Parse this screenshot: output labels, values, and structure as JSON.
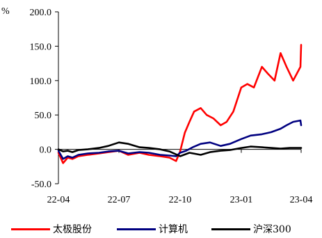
{
  "chart_data": {
    "type": "line",
    "title": "",
    "xlabel": "",
    "ylabel": "%",
    "ylim": [
      -50,
      200
    ],
    "y_ticks": [
      "200.0",
      "150.0",
      "100.0",
      "50.0",
      "0.0",
      "-50.0"
    ],
    "x_ticks": [
      "22-04",
      "22-07",
      "22-10",
      "23-01",
      "23-04"
    ],
    "x_range": [
      "2022-04",
      "2023-04"
    ],
    "grid": false,
    "legend_position": "bottom",
    "series": [
      {
        "name": "太极股份",
        "color": "#ff0000",
        "x": [
          "2022-04-01",
          "2022-04-08",
          "2022-04-15",
          "2022-04-22",
          "2022-05-01",
          "2022-05-15",
          "2022-06-01",
          "2022-06-15",
          "2022-07-01",
          "2022-07-15",
          "2022-08-01",
          "2022-08-15",
          "2022-09-01",
          "2022-09-15",
          "2022-09-25",
          "2022-10-01",
          "2022-10-08",
          "2022-10-15",
          "2022-10-22",
          "2022-11-01",
          "2022-11-10",
          "2022-11-20",
          "2022-12-01",
          "2022-12-10",
          "2022-12-20",
          "2023-01-01",
          "2023-01-10",
          "2023-01-20",
          "2023-02-01",
          "2023-02-10",
          "2023-02-20",
          "2023-03-01",
          "2023-03-10",
          "2023-03-20",
          "2023-03-31",
          "2023-04-01"
        ],
        "values": [
          -5,
          -20,
          -12,
          -14,
          -10,
          -8,
          -6,
          -4,
          -2,
          -8,
          -5,
          -8,
          -10,
          -12,
          -17,
          -3,
          24,
          40,
          55,
          60,
          50,
          45,
          35,
          40,
          55,
          90,
          95,
          90,
          120,
          110,
          100,
          140,
          120,
          100,
          120,
          152
        ]
      },
      {
        "name": "计算机",
        "color": "#000080",
        "x": [
          "2022-04-01",
          "2022-04-08",
          "2022-04-15",
          "2022-04-22",
          "2022-05-01",
          "2022-05-15",
          "2022-06-01",
          "2022-06-15",
          "2022-07-01",
          "2022-07-15",
          "2022-08-01",
          "2022-08-15",
          "2022-09-01",
          "2022-09-15",
          "2022-09-25",
          "2022-10-01",
          "2022-10-10",
          "2022-10-20",
          "2022-11-01",
          "2022-11-15",
          "2022-12-01",
          "2022-12-15",
          "2023-01-01",
          "2023-01-15",
          "2023-02-01",
          "2023-02-15",
          "2023-03-01",
          "2023-03-10",
          "2023-03-20",
          "2023-03-31",
          "2023-04-01"
        ],
        "values": [
          -2,
          -14,
          -10,
          -12,
          -8,
          -6,
          -5,
          -3,
          -2,
          -6,
          -4,
          -5,
          -8,
          -9,
          -10,
          -5,
          -2,
          3,
          8,
          10,
          5,
          8,
          15,
          20,
          22,
          25,
          30,
          35,
          40,
          42,
          35
        ]
      },
      {
        "name": "沪深300",
        "color": "#000000",
        "x": [
          "2022-04-01",
          "2022-04-08",
          "2022-04-15",
          "2022-04-22",
          "2022-05-01",
          "2022-05-15",
          "2022-06-01",
          "2022-06-15",
          "2022-07-01",
          "2022-07-15",
          "2022-08-01",
          "2022-08-15",
          "2022-09-01",
          "2022-09-15",
          "2022-10-01",
          "2022-10-15",
          "2022-11-01",
          "2022-11-15",
          "2022-12-01",
          "2022-12-15",
          "2023-01-01",
          "2023-01-15",
          "2023-02-01",
          "2023-02-15",
          "2023-03-01",
          "2023-03-15",
          "2023-04-01"
        ],
        "values": [
          0,
          -3,
          -2,
          -4,
          -1,
          0,
          2,
          5,
          10,
          8,
          3,
          2,
          0,
          -3,
          -10,
          -5,
          -8,
          -4,
          -2,
          -1,
          2,
          4,
          3,
          2,
          1,
          2,
          2
        ]
      }
    ]
  }
}
